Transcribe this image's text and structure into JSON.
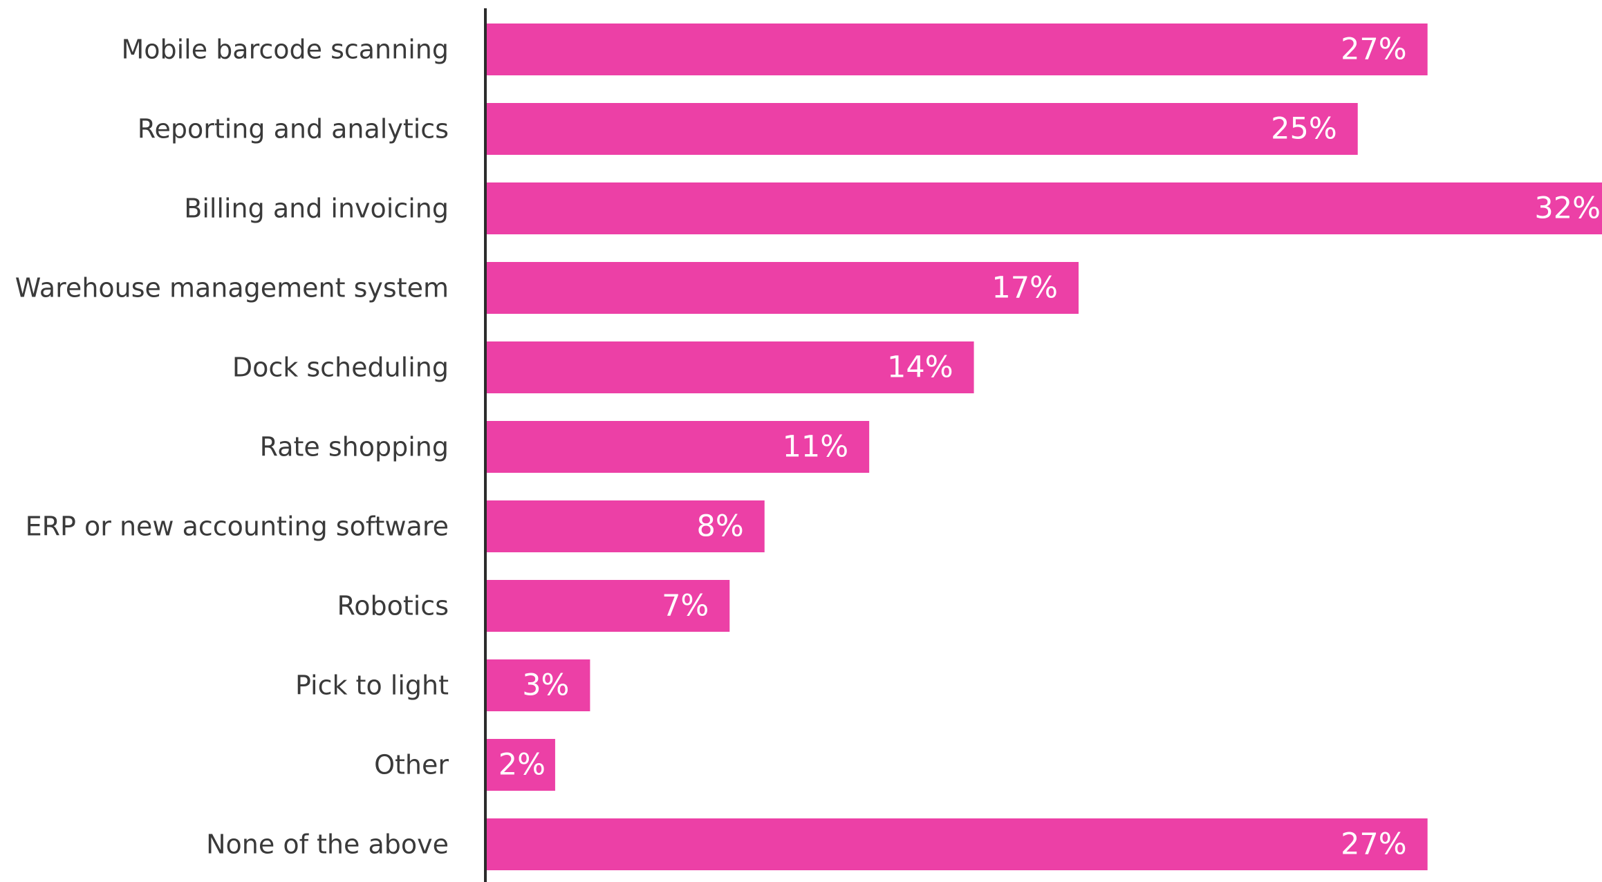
{
  "chart_data": {
    "type": "bar",
    "orientation": "horizontal",
    "categories": [
      "Mobile barcode scanning",
      "Reporting and analytics",
      "Billing and invoicing",
      "Warehouse management system",
      "Dock scheduling",
      "Rate shopping",
      "ERP or new accounting software",
      "Robotics",
      "Pick to light",
      "Other",
      "None of the above"
    ],
    "values": [
      27,
      25,
      32,
      17,
      14,
      11,
      8,
      7,
      3,
      2,
      27
    ],
    "value_labels": [
      "27%",
      "25%",
      "32%",
      "17%",
      "14%",
      "11%",
      "8%",
      "7%",
      "3%",
      "2%",
      "27%"
    ],
    "xlim": [
      0,
      32
    ],
    "grid": false,
    "legend": "none",
    "bar_color": "#ec40a6",
    "axis_color": "#2b2b2b"
  }
}
